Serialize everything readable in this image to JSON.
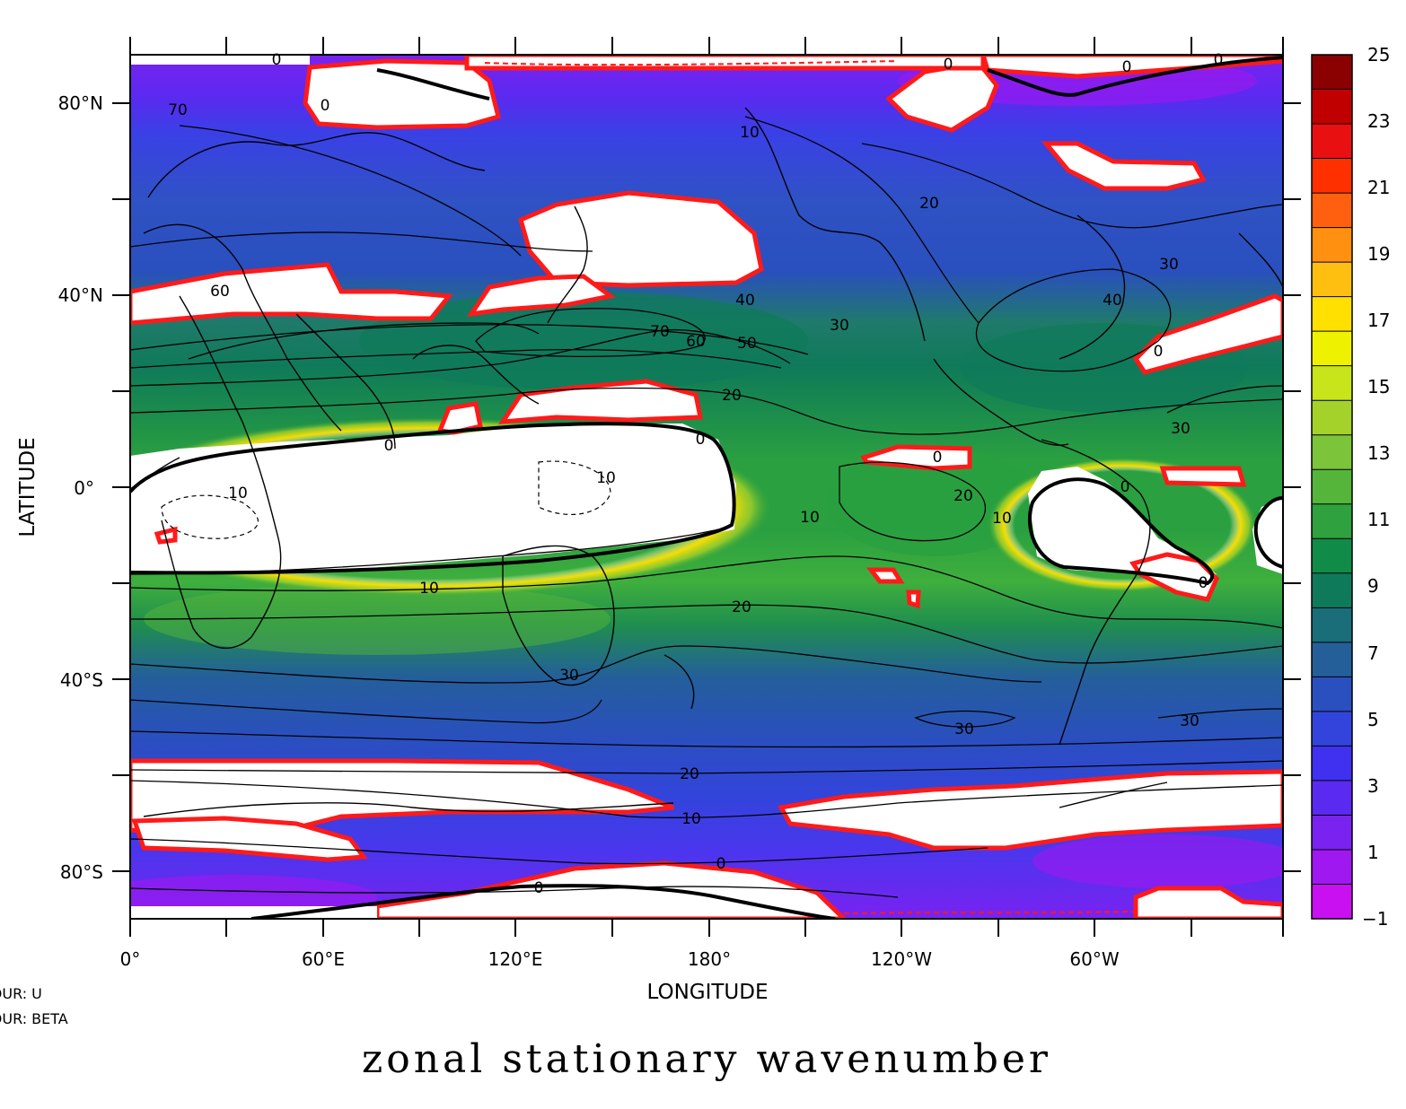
{
  "chart_data": {
    "type": "map",
    "title": "zonal stationary wavenumber",
    "xlabel": "LONGITUDE",
    "ylabel": "LATITUDE",
    "x_ticks": [
      "0°",
      "60°E",
      "120°E",
      "180°",
      "120°W",
      "60°W"
    ],
    "y_ticks": [
      "80°N",
      "40°N",
      "0°",
      "40°S",
      "80°S"
    ],
    "notes": [
      "TOUR: U",
      "TOUR: BETA"
    ],
    "colorbar": {
      "labels": [
        "25",
        "23",
        "21",
        "19",
        "17",
        "15",
        "13",
        "11",
        "9",
        "7",
        "5",
        "3",
        "1",
        "−1"
      ],
      "range": [
        -1,
        25
      ],
      "colors": [
        "#8b0000",
        "#c00000",
        "#e81010",
        "#ff3000",
        "#ff6010",
        "#ff9010",
        "#ffbf10",
        "#ffe000",
        "#eef200",
        "#c8e41a",
        "#a4d12a",
        "#7cc43a",
        "#55b43a",
        "#2fa13e",
        "#108b48",
        "#0f7a5a",
        "#1a6e7a",
        "#245f9a",
        "#2a4fbe",
        "#3344dc",
        "#4030f0",
        "#5a2af0",
        "#7a22f0",
        "#a018f0",
        "#c810f0"
      ]
    },
    "contour_labels": [
      "0",
      "10",
      "20",
      "30",
      "40",
      "50",
      "60",
      "70"
    ]
  }
}
